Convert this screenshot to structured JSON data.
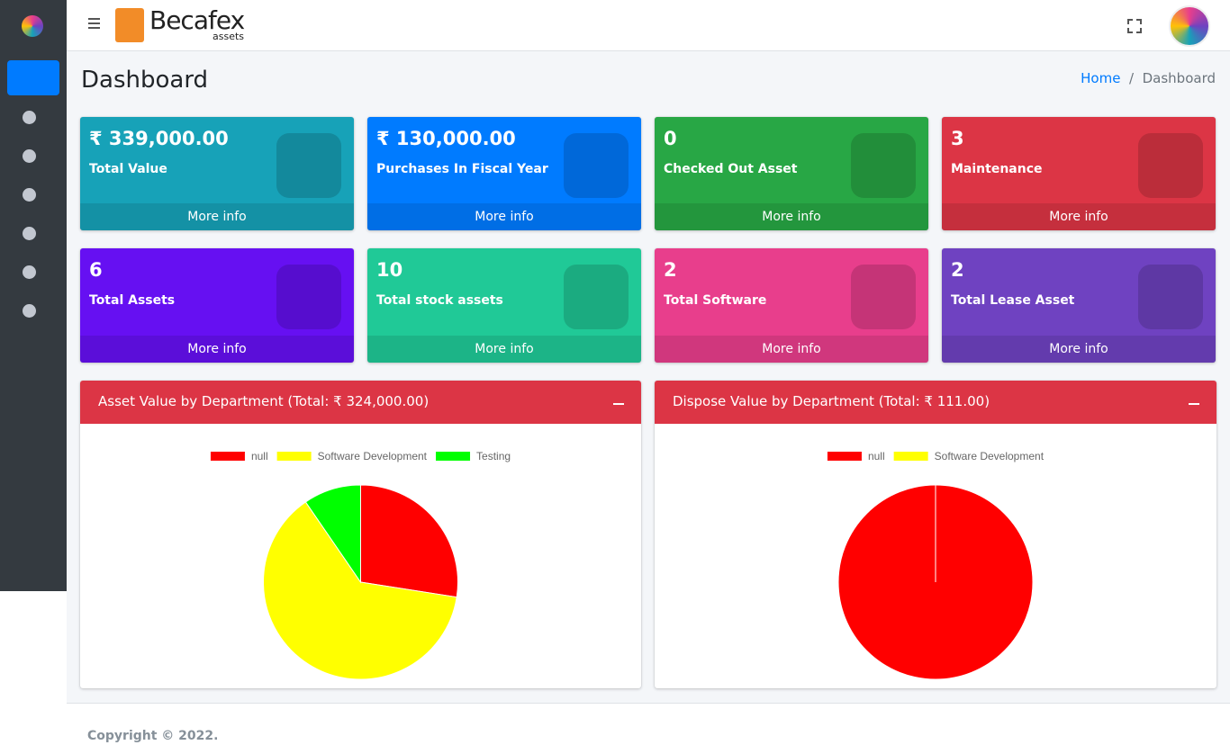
{
  "header": {
    "brand": "Becafex",
    "brand_sub": "assets"
  },
  "page_title": "Dashboard",
  "breadcrumb": [
    "Home",
    "Dashboard"
  ],
  "cards": [
    {
      "value": "₹ 339,000.00",
      "label": "Total Value",
      "link": "More info",
      "color": "#17a2b8"
    },
    {
      "value": "₹ 130,000.00",
      "label": "Purchases In Fiscal Year",
      "link": "More info",
      "color": "#007bff"
    },
    {
      "value": "0",
      "label": "Checked Out Asset",
      "link": "More info",
      "color": "#28a745"
    },
    {
      "value": "3",
      "label": "Maintenance",
      "link": "More info",
      "color": "#dc3545"
    },
    {
      "value": "6",
      "label": "Total Assets",
      "link": "More info",
      "color": "#6610f2"
    },
    {
      "value": "10",
      "label": "Total stock assets",
      "link": "More info",
      "color": "#20c997"
    },
    {
      "value": "2",
      "label": "Total Software",
      "link": "More info",
      "color": "#e83e8c"
    },
    {
      "value": "2",
      "label": "Total Lease Asset",
      "link": "More info",
      "color": "#6f42c1"
    }
  ],
  "chart_data": [
    {
      "type": "pie",
      "title": "Asset Value by Department (Total: ₹ 324,000.00)",
      "categories": [
        "null",
        "Software Development",
        "Testing"
      ],
      "values": [
        89000,
        204000,
        31000
      ],
      "colors": [
        "#ff0000",
        "#ffff00",
        "#00ff00"
      ]
    },
    {
      "type": "pie",
      "title": "Dispose Value by Department (Total: ₹ 111.00)",
      "categories": [
        "null",
        "Software Development"
      ],
      "values": [
        111,
        0
      ],
      "colors": [
        "#ff0000",
        "#ffff00"
      ]
    }
  ],
  "footer": "Copyright © 2022."
}
